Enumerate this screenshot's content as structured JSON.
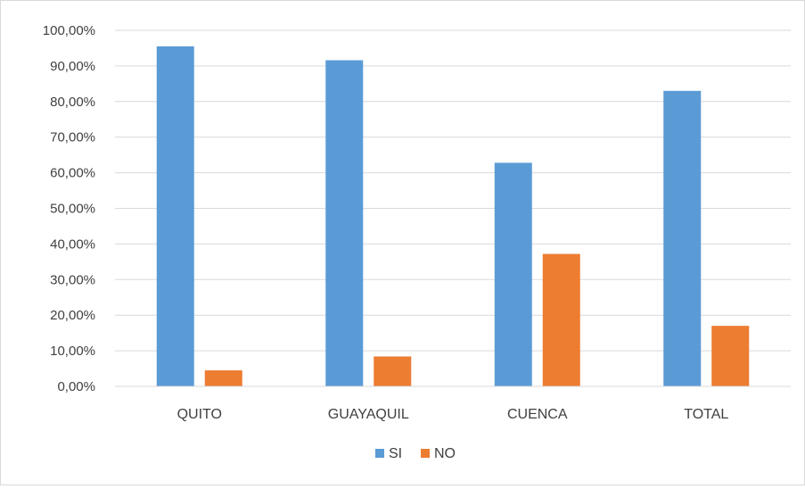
{
  "chart_data": {
    "type": "bar",
    "title": "",
    "xlabel": "",
    "ylabel": "",
    "categories": [
      "QUITO",
      "GUAYAQUIL",
      "CUENCA",
      "TOTAL"
    ],
    "series": [
      {
        "name": "SI",
        "color": "#5b9bd5",
        "values": [
          95.5,
          91.6,
          62.8,
          83.0
        ]
      },
      {
        "name": "NO",
        "color": "#ed7d31",
        "values": [
          4.5,
          8.4,
          37.2,
          17.0
        ]
      }
    ],
    "ylim": [
      0,
      100
    ],
    "yticks": [
      0,
      10,
      20,
      30,
      40,
      50,
      60,
      70,
      80,
      90,
      100
    ],
    "ytick_labels": [
      "0,00%",
      "10,00%",
      "20,00%",
      "30,00%",
      "40,00%",
      "50,00%",
      "60,00%",
      "70,00%",
      "80,00%",
      "90,00%",
      "100,00%"
    ],
    "grid": true,
    "legend_position": "bottom"
  }
}
